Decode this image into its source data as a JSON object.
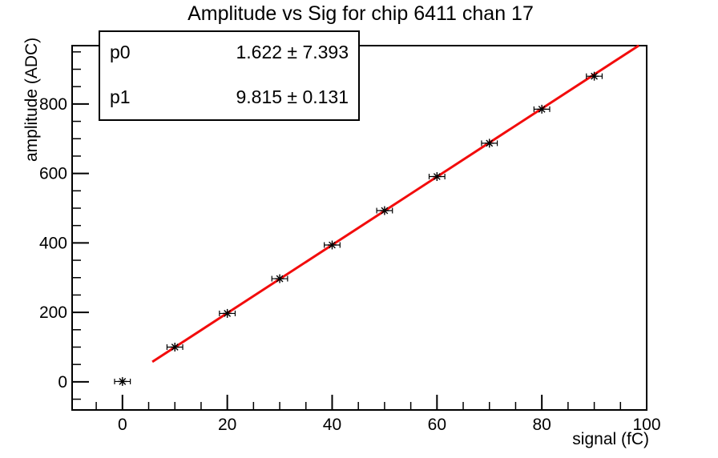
{
  "title": "Amplitude vs Sig for chip 6411 chan 17",
  "stats_box": {
    "rows": [
      {
        "param": "p0",
        "value": "1.622 ± 7.393"
      },
      {
        "param": "p1",
        "value": "9.815 ± 0.131"
      }
    ]
  },
  "chart_data": {
    "type": "scatter",
    "title": "Amplitude vs Sig for chip 6411 chan 17",
    "xlabel": "signal (fC)",
    "ylabel": "amplitude (ADC)",
    "xlim": [
      -9.6,
      100
    ],
    "ylim": [
      -81,
      968
    ],
    "x_major_ticks": [
      0,
      20,
      40,
      60,
      80,
      100
    ],
    "x_minor_step": 5,
    "y_major_ticks": [
      0,
      200,
      400,
      600,
      800
    ],
    "y_minor_step": 50,
    "grid": false,
    "points": {
      "x": [
        0,
        10,
        20,
        30,
        40,
        50,
        60,
        70,
        80,
        90
      ],
      "y": [
        1,
        100,
        197,
        297,
        394,
        493,
        591,
        687,
        785,
        880
      ],
      "x_error": 1.5
    },
    "fit": {
      "p0": 1.622,
      "p1": 9.815,
      "x_start": 5.7,
      "x_end": 98.5
    },
    "marker": "asterisk",
    "marker_color": "#000000",
    "fit_color": "#f20c0c",
    "axis_color": "#000000",
    "background_color": "#ffffff"
  }
}
